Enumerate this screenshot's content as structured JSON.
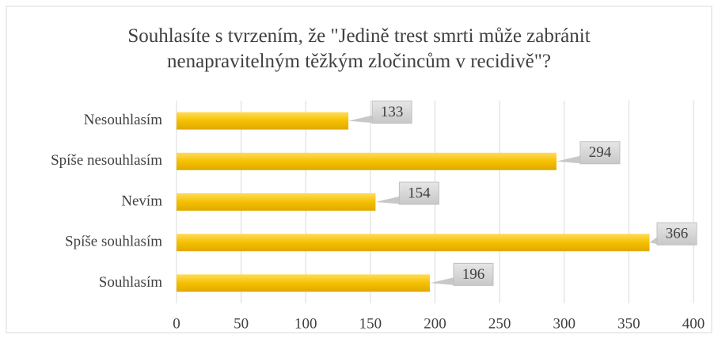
{
  "chart_data": {
    "type": "bar",
    "orientation": "horizontal",
    "title": "Souhlasíte s tvrzením, že \"Jedině trest smrti může zabránit nenapravitelným těžkým zločincům v recidivě\"?",
    "categories": [
      "Nesouhlasím",
      "Spíše nesouhlasím",
      "Nevím",
      "Spíše souhlasím",
      "Souhlasím"
    ],
    "values": [
      133,
      294,
      154,
      366,
      196
    ],
    "color": "#f5c000",
    "xlim": [
      0,
      400
    ],
    "xticks": [
      0,
      50,
      100,
      150,
      200,
      250,
      300,
      350,
      400
    ],
    "grid": true
  }
}
